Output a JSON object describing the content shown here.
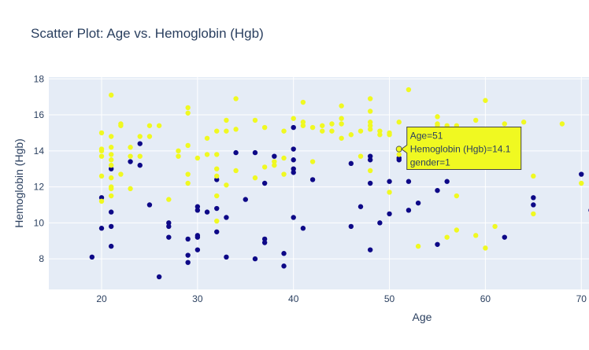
{
  "chart_data": {
    "type": "scatter",
    "title": "Scatter Plot: Age vs. Hemoglobin (Hgb)",
    "xlabel": "Age",
    "ylabel": "Hemoglobin (Hgb)",
    "xlim": [
      14.5,
      70.8
    ],
    "ylim": [
      6.3,
      18.1
    ],
    "xticks": [
      20,
      30,
      40,
      50,
      60,
      70
    ],
    "yticks": [
      8,
      10,
      12,
      14,
      16,
      18
    ],
    "grid": true,
    "background": "#e5ecf6",
    "series": [
      {
        "color": "#0d0887",
        "points": [
          [
            19,
            8.1
          ],
          [
            20,
            9.7
          ],
          [
            20,
            11.4
          ],
          [
            21,
            8.7
          ],
          [
            21,
            9.8
          ],
          [
            21,
            10.6
          ],
          [
            21,
            13.0
          ],
          [
            23,
            13.4
          ],
          [
            24,
            13.2
          ],
          [
            24,
            14.4
          ],
          [
            25,
            11.0
          ],
          [
            26,
            7.0
          ],
          [
            27,
            9.2
          ],
          [
            27,
            9.8
          ],
          [
            27,
            10.0
          ],
          [
            29,
            7.8
          ],
          [
            29,
            8.2
          ],
          [
            29,
            9.1
          ],
          [
            30,
            8.5
          ],
          [
            30,
            9.2
          ],
          [
            30,
            9.3
          ],
          [
            30,
            10.7
          ],
          [
            30,
            10.9
          ],
          [
            31,
            10.6
          ],
          [
            32,
            9.5
          ],
          [
            32,
            10.8
          ],
          [
            32,
            12.4
          ],
          [
            33,
            8.1
          ],
          [
            33,
            10.3
          ],
          [
            34,
            13.9
          ],
          [
            35,
            11.3
          ],
          [
            36,
            8.0
          ],
          [
            36,
            13.9
          ],
          [
            37,
            8.9
          ],
          [
            37,
            9.1
          ],
          [
            37,
            12.2
          ],
          [
            38,
            13.7
          ],
          [
            39,
            7.6
          ],
          [
            39,
            8.3
          ],
          [
            40,
            10.3
          ],
          [
            40,
            12.8
          ],
          [
            40,
            13.0
          ],
          [
            40,
            13.5
          ],
          [
            40,
            14.1
          ],
          [
            40,
            15.3
          ],
          [
            41,
            9.7
          ],
          [
            42,
            12.4
          ],
          [
            46,
            9.8
          ],
          [
            46,
            13.3
          ],
          [
            47,
            10.9
          ],
          [
            48,
            8.5
          ],
          [
            48,
            12.2
          ],
          [
            48,
            13.5
          ],
          [
            48,
            13.7
          ],
          [
            49,
            10.0
          ],
          [
            50,
            10.5
          ],
          [
            50,
            12.3
          ],
          [
            51,
            13.5
          ],
          [
            51,
            13.6
          ],
          [
            52,
            10.7
          ],
          [
            52,
            12.3
          ],
          [
            53,
            11.1
          ],
          [
            55,
            8.8
          ],
          [
            55,
            11.8
          ],
          [
            56,
            12.3
          ],
          [
            62,
            9.2
          ],
          [
            65,
            11.0
          ],
          [
            65,
            11.4
          ],
          [
            70,
            12.7
          ],
          [
            71,
            10.7
          ]
        ]
      },
      {
        "color": "#f0f921",
        "points": [
          [
            20,
            11.2
          ],
          [
            20,
            12.6
          ],
          [
            20,
            13.7
          ],
          [
            20,
            14.0
          ],
          [
            20,
            14.1
          ],
          [
            20,
            15.0
          ],
          [
            21,
            11.5
          ],
          [
            21,
            11.9
          ],
          [
            21,
            12.0
          ],
          [
            21,
            12.5
          ],
          [
            21,
            13.2
          ],
          [
            21,
            13.5
          ],
          [
            21,
            13.8
          ],
          [
            21,
            14.2
          ],
          [
            21,
            14.8
          ],
          [
            21,
            17.1
          ],
          [
            22,
            12.7
          ],
          [
            22,
            15.4
          ],
          [
            22,
            15.5
          ],
          [
            23,
            11.9
          ],
          [
            23,
            13.7
          ],
          [
            23,
            14.2
          ],
          [
            24,
            13.7
          ],
          [
            24,
            14.8
          ],
          [
            25,
            14.8
          ],
          [
            25,
            15.4
          ],
          [
            26,
            15.4
          ],
          [
            27,
            11.3
          ],
          [
            28,
            13.7
          ],
          [
            28,
            14.0
          ],
          [
            29,
            12.2
          ],
          [
            29,
            12.7
          ],
          [
            29,
            14.3
          ],
          [
            29,
            16.1
          ],
          [
            29,
            16.4
          ],
          [
            30,
            13.6
          ],
          [
            31,
            13.8
          ],
          [
            31,
            14.7
          ],
          [
            32,
            10.1
          ],
          [
            32,
            11.5
          ],
          [
            32,
            12.6
          ],
          [
            32,
            13.0
          ],
          [
            32,
            13.8
          ],
          [
            32,
            15.1
          ],
          [
            33,
            12.1
          ],
          [
            33,
            15.1
          ],
          [
            33,
            15.7
          ],
          [
            34,
            12.9
          ],
          [
            34,
            15.2
          ],
          [
            34,
            16.9
          ],
          [
            36,
            12.5
          ],
          [
            36,
            15.7
          ],
          [
            37,
            13.1
          ],
          [
            37,
            15.3
          ],
          [
            38,
            13.2
          ],
          [
            38,
            13.4
          ],
          [
            39,
            12.7
          ],
          [
            39,
            13.6
          ],
          [
            39,
            15.1
          ],
          [
            40,
            15.8
          ],
          [
            41,
            15.4
          ],
          [
            41,
            15.6
          ],
          [
            41,
            16.7
          ],
          [
            42,
            13.4
          ],
          [
            42,
            15.3
          ],
          [
            43,
            15.1
          ],
          [
            43,
            15.4
          ],
          [
            44,
            15.1
          ],
          [
            44,
            15.5
          ],
          [
            45,
            14.7
          ],
          [
            45,
            15.5
          ],
          [
            45,
            15.8
          ],
          [
            45,
            16.5
          ],
          [
            46,
            14.9
          ],
          [
            47,
            13.7
          ],
          [
            47,
            15.1
          ],
          [
            48,
            12.9
          ],
          [
            48,
            15.2
          ],
          [
            48,
            15.4
          ],
          [
            48,
            15.6
          ],
          [
            48,
            16.2
          ],
          [
            48,
            16.9
          ],
          [
            49,
            14.9
          ],
          [
            49,
            15.1
          ],
          [
            50,
            11.7
          ],
          [
            50,
            14.9
          ],
          [
            50,
            15.0
          ],
          [
            51,
            13.8
          ],
          [
            51,
            14.1
          ],
          [
            51,
            15.6
          ],
          [
            52,
            17.4
          ],
          [
            53,
            8.7
          ],
          [
            55,
            15.4
          ],
          [
            55,
            15.5
          ],
          [
            55,
            15.9
          ],
          [
            56,
            9.2
          ],
          [
            56,
            15.3
          ],
          [
            56,
            15.4
          ],
          [
            57,
            9.6
          ],
          [
            57,
            11.5
          ],
          [
            57,
            15.4
          ],
          [
            59,
            9.3
          ],
          [
            59,
            15.7
          ],
          [
            60,
            8.6
          ],
          [
            60,
            16.8
          ],
          [
            61,
            9.8
          ],
          [
            62,
            15.5
          ],
          [
            64,
            15.6
          ],
          [
            65,
            10.5
          ],
          [
            65,
            12.6
          ],
          [
            68,
            15.5
          ],
          [
            70,
            12.2
          ]
        ]
      }
    ],
    "tooltip": {
      "x": 51,
      "y": 14.1,
      "lines": [
        "Age=51",
        "Hemoglobin (Hgb)=14.1",
        "gender=1"
      ]
    }
  }
}
